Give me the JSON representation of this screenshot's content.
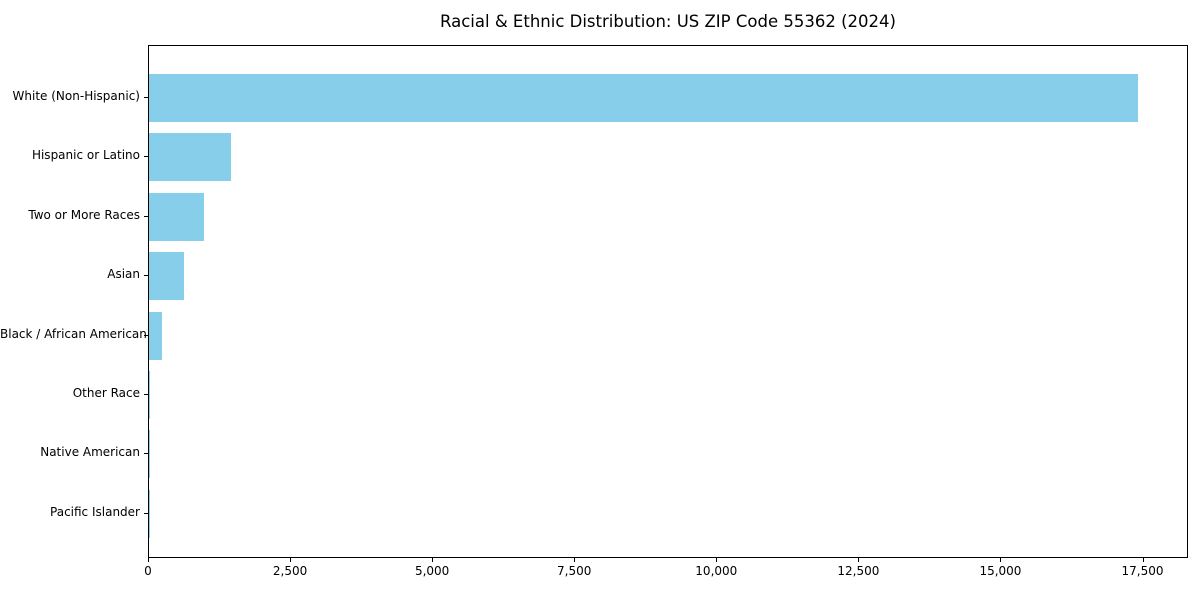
{
  "chart_data": {
    "type": "bar",
    "orientation": "horizontal",
    "title": "Racial & Ethnic Distribution: US ZIP Code 55362 (2024)",
    "categories": [
      "White (Non-Hispanic)",
      "Hispanic or Latino",
      "Two or More Races",
      "Asian",
      "Black / African American",
      "Other Race",
      "Native American",
      "Pacific Islander"
    ],
    "values": [
      17400,
      1440,
      970,
      610,
      220,
      20,
      8,
      4
    ],
    "bar_color": "#87CEEB",
    "xlim": [
      0,
      18300
    ],
    "xticks": [
      0,
      2500,
      5000,
      7500,
      10000,
      12500,
      15000,
      17500
    ],
    "xtick_labels": [
      "0",
      "2,500",
      "5,000",
      "7,500",
      "10,000",
      "12,500",
      "15,000",
      "17,500"
    ],
    "xlabel": "",
    "ylabel": "",
    "grid": false,
    "legend": "none",
    "plot_border_color": "#000000",
    "background_color": "#ffffff"
  }
}
